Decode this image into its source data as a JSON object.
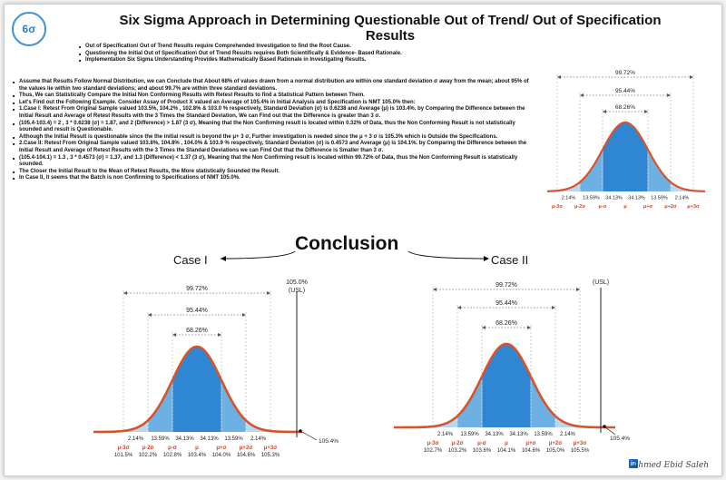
{
  "title": "Six Sigma Approach in Determining Questionable Out of Trend/ Out of Specification Results",
  "logo_text": "6σ",
  "intro_bullets": [
    "Out of Specification/ Out of Trend Results require Comprehended Investigation to find the Root Cause.",
    "Questioning the Initial Out of Specification\\ Out of Trend Results requires Both  Scientifically & Evidence- Based Rationale.",
    "Implementation Six Sigma Understanding Provides Mathematically Based Rationale in Investigating Results."
  ],
  "main_bullets": [
    "Assume that Results Follow Normal Distribution, we can Conclude that About 68% of values drawn from a normal distribution are within one standard deviation σ away from the mean; about 95% of the values lie within two standard deviations; and about 99.7% are within three standard deviations.",
    "Thus, We can Statistically Compare the Initial Non Conforming Results with Retest Results to find a Statistical Pattern between Them.",
    "Let's Find out the Following Example. Consider Assay of Product X valued an Average of 105.4% in Initial Analysis and Specification is NMT 105.0% then:",
    "1.Case I: Retest From Original Sample valued 103.5%, 104.2% , 102.8% & 103.0 % respectively, Standard Deviation (σ) is 0.6238 and Average (μ) is 103.4%. by Comparing the Difference between the Initial Result and Average of Retest Results with the 3 Times the Standard Deviation, We can Find out that the Difference is greater than 3 σ.",
    "(105.4-103.4) = 2 , 3 * 0.6238 (σ) = 1.87, and 2 (Difference) > 1.87 (3 σ), Meaning that the Non Confirming result is located within 0.32% of Data, thus the Non Conforming Result is not statistically sounded and result is Questionable.",
    "Although the Initial Result is questionable since the the initial result is beyond the μ+ 3 σ, Further investigation is needed since the μ + 3 σ is 105.3% which is Outside the Specifications.",
    "2.Case II: Retest  From Original Sample valued 103.8%, 104.8% , 104.0% & 103.9 % respectively, Standard Deviation (σ) is 0.4573 and Average (μ) is 104.1%. by Comparing the Difference between the Initial Result and Average of Retest Results with the 3 Times the Standard Deviations we can Find Out that the Difference is Smaller than 3 σ.",
    "(105.4-104.1) = 1.3  , 3 * 0.4573 (σ) = 1.37, and 1.3 (Difference) < 1.37 (3 σ), Meaning that the Non Confirming result is located within 99.72% of Data, thus the Non Conforming Result is statistically sounded.",
    "The Closer the Initial Result to the Mean of Retest Results, the More statistically Sounded the Result.",
    "In Case II, it seems that the Batch is non Confirming to Specifications of NMT 105.0%."
  ],
  "conclusion": "Conclusion",
  "case1_label": "Case I",
  "case2_label": "Case II",
  "ranges": {
    "r99": "99.72%",
    "r95": "95.44%",
    "r68": "68.26%"
  },
  "percents": [
    "2.14%",
    "13.59%",
    "34.13%",
    "34.13%",
    "13.59%",
    "2.14%"
  ],
  "sigma_labels": [
    "μ-3σ",
    "μ-2σ",
    "μ-σ",
    "μ",
    "μ+σ",
    "μ+2σ",
    "μ+3σ"
  ],
  "case1": {
    "usl_value": "105.0%",
    "usl_label": "(USL)",
    "values": [
      "101.5%",
      "102.2%",
      "102.8%",
      "103.4%",
      "104.0%",
      "104.6%",
      "105.3%"
    ],
    "initial": "105.4%"
  },
  "case2": {
    "usl_label": "(USL)",
    "values": [
      "102.7%",
      "103.2%",
      "103.6%",
      "104.1%",
      "104.6%",
      "105.0%",
      "105.5%"
    ],
    "initial": "105.4%"
  },
  "signature": "Ahmed Ebid Saleh",
  "linkedin_icon": "in",
  "colors": {
    "curve": "#d9532a",
    "dark_fill": "#2f86d3",
    "mid_fill": "#6db0e4",
    "light_fill": "#b6d9f3",
    "sigma_text": "#c9462a"
  }
}
